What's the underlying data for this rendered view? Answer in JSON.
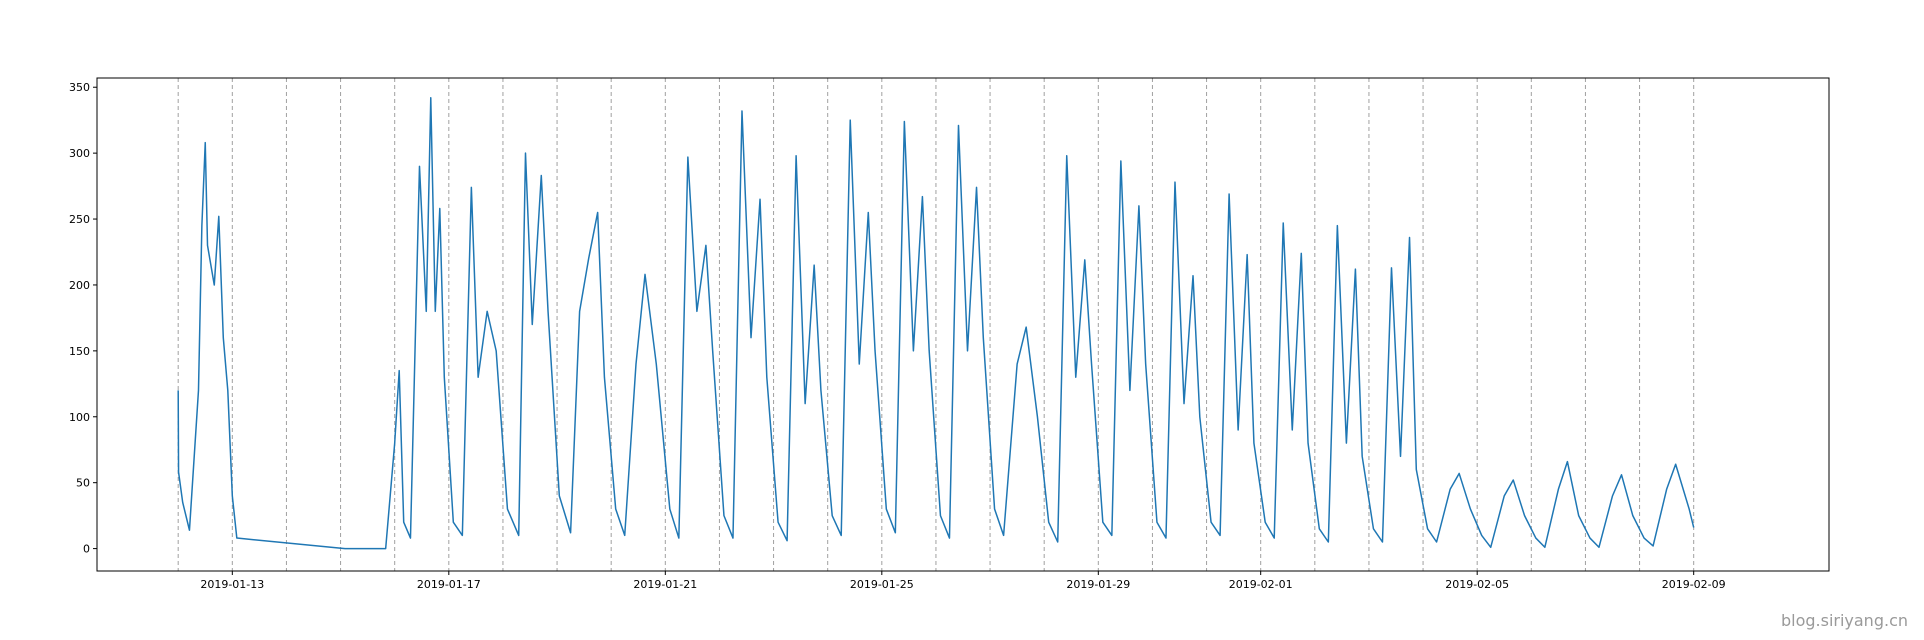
{
  "chart_data": {
    "type": "line",
    "title": "",
    "xlabel": "",
    "ylabel": "",
    "x_axis": {
      "type": "date",
      "range": [
        "2019-01-10T12:00",
        "2019-02-11T12:00"
      ],
      "ticks": [
        "2019-01-13",
        "2019-01-17",
        "2019-01-21",
        "2019-01-25",
        "2019-01-29",
        "2019-02-01",
        "2019-02-05",
        "2019-02-09"
      ]
    },
    "y_axis": {
      "range": [
        -17,
        357
      ],
      "ticks": [
        0,
        50,
        100,
        150,
        200,
        250,
        300,
        350
      ]
    },
    "grid": "vertical dashed lines at each day boundary from 2019-01-12 to 2019-02-09",
    "series": [
      {
        "color": "#1f77b4",
        "points": [
          [
            "2019-01-12T00:00",
            120
          ],
          [
            "2019-01-12T00:10",
            58
          ],
          [
            "2019-01-12T02:00",
            35
          ],
          [
            "2019-01-12T05:00",
            14
          ],
          [
            "2019-01-12T09:00",
            120
          ],
          [
            "2019-01-12T10:30",
            245
          ],
          [
            "2019-01-12T12:00",
            308
          ],
          [
            "2019-01-12T13:00",
            230
          ],
          [
            "2019-01-12T16:00",
            200
          ],
          [
            "2019-01-12T18:00",
            252
          ],
          [
            "2019-01-12T20:00",
            160
          ],
          [
            "2019-01-12T22:00",
            120
          ],
          [
            "2019-01-13T00:00",
            40
          ],
          [
            "2019-01-13T02:00",
            8
          ],
          [
            "2019-01-15T02:00",
            0
          ],
          [
            "2019-01-15T20:00",
            0
          ],
          [
            "2019-01-16T00:00",
            80
          ],
          [
            "2019-01-16T02:00",
            135
          ],
          [
            "2019-01-16T04:00",
            20
          ],
          [
            "2019-01-16T07:00",
            8
          ],
          [
            "2019-01-16T11:00",
            290
          ],
          [
            "2019-01-16T14:00",
            180
          ],
          [
            "2019-01-16T16:00",
            342
          ],
          [
            "2019-01-16T18:00",
            180
          ],
          [
            "2019-01-16T20:00",
            258
          ],
          [
            "2019-01-16T22:00",
            130
          ],
          [
            "2019-01-17T02:00",
            20
          ],
          [
            "2019-01-17T06:00",
            10
          ],
          [
            "2019-01-17T10:00",
            274
          ],
          [
            "2019-01-17T13:00",
            130
          ],
          [
            "2019-01-17T17:00",
            180
          ],
          [
            "2019-01-17T21:00",
            150
          ],
          [
            "2019-01-18T02:00",
            30
          ],
          [
            "2019-01-18T07:00",
            10
          ],
          [
            "2019-01-18T10:00",
            300
          ],
          [
            "2019-01-18T13:00",
            170
          ],
          [
            "2019-01-18T17:00",
            283
          ],
          [
            "2019-01-18T20:00",
            180
          ],
          [
            "2019-01-19T01:00",
            40
          ],
          [
            "2019-01-19T06:00",
            12
          ],
          [
            "2019-01-19T10:00",
            180
          ],
          [
            "2019-01-19T14:00",
            220
          ],
          [
            "2019-01-19T18:00",
            255
          ],
          [
            "2019-01-19T21:00",
            130
          ],
          [
            "2019-01-20T02:00",
            30
          ],
          [
            "2019-01-20T06:00",
            10
          ],
          [
            "2019-01-20T11:00",
            140
          ],
          [
            "2019-01-20T15:00",
            208
          ],
          [
            "2019-01-20T20:00",
            140
          ],
          [
            "2019-01-21T02:00",
            30
          ],
          [
            "2019-01-21T06:00",
            8
          ],
          [
            "2019-01-21T10:00",
            297
          ],
          [
            "2019-01-21T14:00",
            180
          ],
          [
            "2019-01-21T18:00",
            230
          ],
          [
            "2019-01-21T21:00",
            150
          ],
          [
            "2019-01-22T02:00",
            25
          ],
          [
            "2019-01-22T06:00",
            8
          ],
          [
            "2019-01-22T10:00",
            332
          ],
          [
            "2019-01-22T14:00",
            160
          ],
          [
            "2019-01-22T18:00",
            265
          ],
          [
            "2019-01-22T21:00",
            130
          ],
          [
            "2019-01-23T02:00",
            20
          ],
          [
            "2019-01-23T06:00",
            6
          ],
          [
            "2019-01-23T10:00",
            298
          ],
          [
            "2019-01-23T14:00",
            110
          ],
          [
            "2019-01-23T18:00",
            215
          ],
          [
            "2019-01-23T21:00",
            120
          ],
          [
            "2019-01-24T02:00",
            25
          ],
          [
            "2019-01-24T06:00",
            10
          ],
          [
            "2019-01-24T10:00",
            325
          ],
          [
            "2019-01-24T14:00",
            140
          ],
          [
            "2019-01-24T18:00",
            255
          ],
          [
            "2019-01-24T21:00",
            150
          ],
          [
            "2019-01-25T02:00",
            30
          ],
          [
            "2019-01-25T06:00",
            12
          ],
          [
            "2019-01-25T10:00",
            324
          ],
          [
            "2019-01-25T14:00",
            150
          ],
          [
            "2019-01-25T18:00",
            267
          ],
          [
            "2019-01-25T21:00",
            150
          ],
          [
            "2019-01-26T02:00",
            25
          ],
          [
            "2019-01-26T06:00",
            8
          ],
          [
            "2019-01-26T10:00",
            321
          ],
          [
            "2019-01-26T14:00",
            150
          ],
          [
            "2019-01-26T18:00",
            274
          ],
          [
            "2019-01-26T21:00",
            160
          ],
          [
            "2019-01-27T02:00",
            30
          ],
          [
            "2019-01-27T06:00",
            10
          ],
          [
            "2019-01-27T12:00",
            140
          ],
          [
            "2019-01-27T16:00",
            168
          ],
          [
            "2019-01-27T21:00",
            100
          ],
          [
            "2019-01-28T02:00",
            20
          ],
          [
            "2019-01-28T06:00",
            5
          ],
          [
            "2019-01-28T10:00",
            298
          ],
          [
            "2019-01-28T14:00",
            130
          ],
          [
            "2019-01-28T18:00",
            219
          ],
          [
            "2019-01-28T21:00",
            140
          ],
          [
            "2019-01-29T02:00",
            20
          ],
          [
            "2019-01-29T06:00",
            10
          ],
          [
            "2019-01-29T10:00",
            294
          ],
          [
            "2019-01-29T14:00",
            120
          ],
          [
            "2019-01-29T18:00",
            260
          ],
          [
            "2019-01-29T21:00",
            140
          ],
          [
            "2019-01-30T02:00",
            20
          ],
          [
            "2019-01-30T06:00",
            8
          ],
          [
            "2019-01-30T10:00",
            278
          ],
          [
            "2019-01-30T14:00",
            110
          ],
          [
            "2019-01-30T18:00",
            207
          ],
          [
            "2019-01-30T21:00",
            100
          ],
          [
            "2019-01-31T02:00",
            20
          ],
          [
            "2019-01-31T06:00",
            10
          ],
          [
            "2019-01-31T10:00",
            269
          ],
          [
            "2019-01-31T14:00",
            90
          ],
          [
            "2019-01-31T18:00",
            223
          ],
          [
            "2019-01-31T21:00",
            80
          ],
          [
            "2019-02-01T02:00",
            20
          ],
          [
            "2019-02-01T06:00",
            8
          ],
          [
            "2019-02-01T10:00",
            247
          ],
          [
            "2019-02-01T14:00",
            90
          ],
          [
            "2019-02-01T18:00",
            224
          ],
          [
            "2019-02-01T21:00",
            80
          ],
          [
            "2019-02-02T02:00",
            15
          ],
          [
            "2019-02-02T06:00",
            5
          ],
          [
            "2019-02-02T10:00",
            245
          ],
          [
            "2019-02-02T14:00",
            80
          ],
          [
            "2019-02-02T18:00",
            212
          ],
          [
            "2019-02-02T21:00",
            70
          ],
          [
            "2019-02-03T02:00",
            15
          ],
          [
            "2019-02-03T06:00",
            5
          ],
          [
            "2019-02-03T10:00",
            213
          ],
          [
            "2019-02-03T14:00",
            70
          ],
          [
            "2019-02-03T18:00",
            236
          ],
          [
            "2019-02-03T21:00",
            60
          ],
          [
            "2019-02-04T02:00",
            15
          ],
          [
            "2019-02-04T06:00",
            5
          ],
          [
            "2019-02-04T12:00",
            45
          ],
          [
            "2019-02-04T16:00",
            57
          ],
          [
            "2019-02-04T21:00",
            30
          ],
          [
            "2019-02-05T02:00",
            10
          ],
          [
            "2019-02-05T06:00",
            1
          ],
          [
            "2019-02-05T12:00",
            40
          ],
          [
            "2019-02-05T16:00",
            52
          ],
          [
            "2019-02-05T21:00",
            25
          ],
          [
            "2019-02-06T02:00",
            8
          ],
          [
            "2019-02-06T06:00",
            1
          ],
          [
            "2019-02-06T12:00",
            45
          ],
          [
            "2019-02-06T16:00",
            66
          ],
          [
            "2019-02-06T21:00",
            25
          ],
          [
            "2019-02-07T02:00",
            8
          ],
          [
            "2019-02-07T06:00",
            1
          ],
          [
            "2019-02-07T12:00",
            40
          ],
          [
            "2019-02-07T16:00",
            56
          ],
          [
            "2019-02-07T21:00",
            25
          ],
          [
            "2019-02-08T02:00",
            8
          ],
          [
            "2019-02-08T06:00",
            2
          ],
          [
            "2019-02-08T12:00",
            45
          ],
          [
            "2019-02-08T16:00",
            64
          ],
          [
            "2019-02-08T22:00",
            30
          ],
          [
            "2019-02-09T00:00",
            16
          ]
        ]
      }
    ]
  },
  "watermark": "blog.siriyang.cn"
}
